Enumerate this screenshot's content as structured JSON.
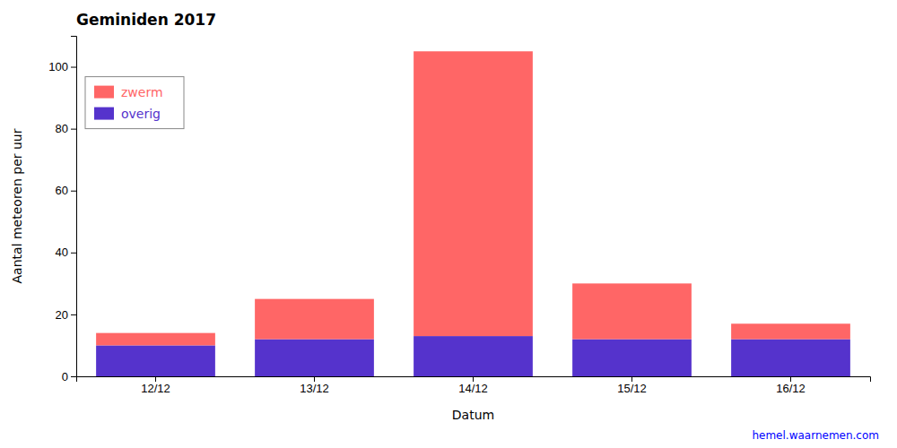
{
  "chart_data": {
    "type": "bar",
    "stacked": true,
    "title": "Geminiden 2017",
    "xlabel": "Datum",
    "ylabel": "Aantal meteoren per uur",
    "categories": [
      "12/12",
      "13/12",
      "14/12",
      "15/12",
      "16/12"
    ],
    "series": [
      {
        "name": "overig",
        "color": "#5533CC",
        "values": [
          10,
          12,
          13,
          12,
          12
        ]
      },
      {
        "name": "zwerm",
        "color": "#FF6666",
        "values": [
          4,
          13,
          92,
          18,
          5
        ]
      }
    ],
    "ylim": [
      0,
      110
    ],
    "yticks": [
      0,
      20,
      40,
      60,
      80,
      100
    ],
    "grid": false,
    "legend": "upper-left",
    "annotations": [
      {
        "text": "hemel.waarnemen.com",
        "color": "#0000FF"
      }
    ]
  }
}
